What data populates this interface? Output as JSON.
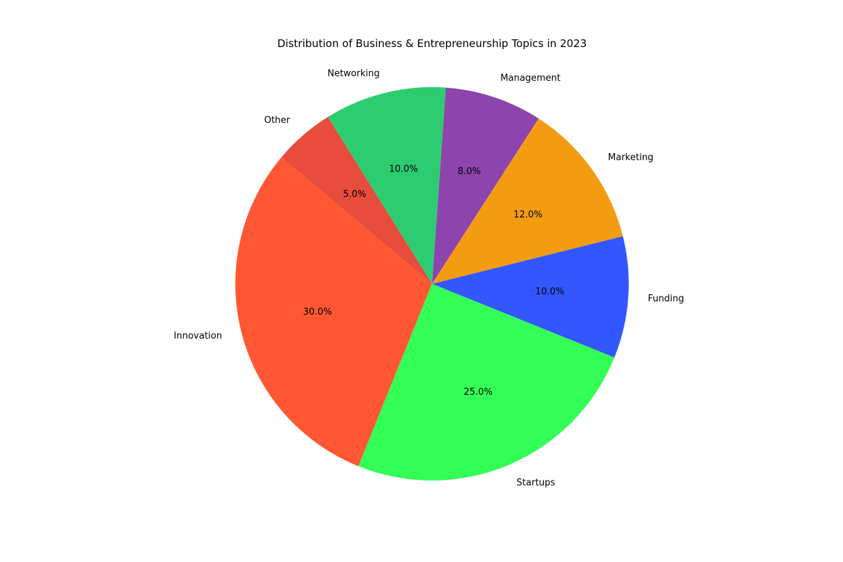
{
  "chart_data": {
    "type": "pie",
    "title": "Distribution of Business & Entrepreneurship Topics in 2023",
    "categories": [
      "Innovation",
      "Startups",
      "Funding",
      "Marketing",
      "Management",
      "Networking",
      "Other"
    ],
    "values": [
      30,
      25,
      10,
      12,
      8,
      10,
      5
    ],
    "percent_labels": [
      "30.0%",
      "25.0%",
      "10.0%",
      "12.0%",
      "8.0%",
      "10.0%",
      "5.0%"
    ],
    "colors": [
      "#FF5733",
      "#33FF57",
      "#3357FF",
      "#F39C12",
      "#8E44AD",
      "#2ECC71",
      "#E74C3C"
    ],
    "start_angle_deg": 140,
    "direction": "counterclockwise",
    "legend": "none"
  }
}
